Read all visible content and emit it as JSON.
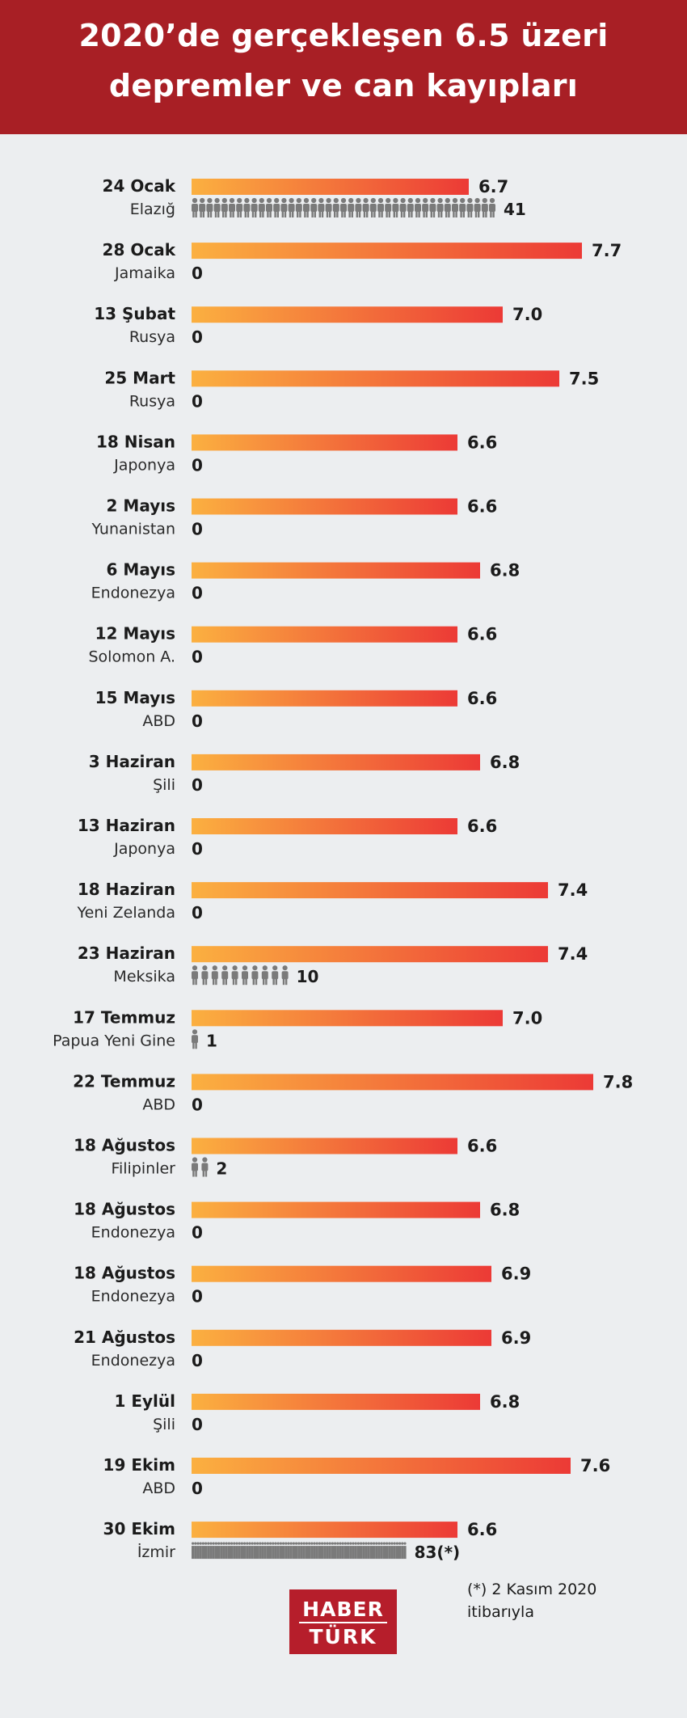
{
  "header": {
    "title_line1": "2020’de gerçekleşen 6.5 üzeri",
    "title_line2": "depremler ve can kayıpları"
  },
  "chart_data": {
    "type": "bar",
    "orientation": "horizontal",
    "value_label": "magnitude",
    "secondary_label": "deaths (person icons)",
    "colors": {
      "bar_start": "#fbb040",
      "bar_end": "#ec3a36",
      "person": "#7a7a7a",
      "header": "#a81f25"
    },
    "rows": [
      {
        "date": "24 Ocak",
        "place": "Elazığ",
        "magnitude": 6.7,
        "magnitude_label": "6.7",
        "deaths": 41,
        "deaths_label": "41"
      },
      {
        "date": "28 Ocak",
        "place": "Jamaika",
        "magnitude": 7.7,
        "magnitude_label": "7.7",
        "deaths": 0,
        "deaths_label": "0"
      },
      {
        "date": "13 Şubat",
        "place": "Rusya",
        "magnitude": 7.0,
        "magnitude_label": "7.0",
        "deaths": 0,
        "deaths_label": "0"
      },
      {
        "date": "25 Mart",
        "place": "Rusya",
        "magnitude": 7.5,
        "magnitude_label": "7.5",
        "deaths": 0,
        "deaths_label": "0"
      },
      {
        "date": "18 Nisan",
        "place": "Japonya",
        "magnitude": 6.6,
        "magnitude_label": "6.6",
        "deaths": 0,
        "deaths_label": "0"
      },
      {
        "date": "2 Mayıs",
        "place": "Yunanistan",
        "magnitude": 6.6,
        "magnitude_label": "6.6",
        "deaths": 0,
        "deaths_label": "0"
      },
      {
        "date": "6 Mayıs",
        "place": "Endonezya",
        "magnitude": 6.8,
        "magnitude_label": "6.8",
        "deaths": 0,
        "deaths_label": "0"
      },
      {
        "date": "12 Mayıs",
        "place": "Solomon A.",
        "magnitude": 6.6,
        "magnitude_label": "6.6",
        "deaths": 0,
        "deaths_label": "0"
      },
      {
        "date": "15 Mayıs",
        "place": "ABD",
        "magnitude": 6.6,
        "magnitude_label": "6.6",
        "deaths": 0,
        "deaths_label": "0"
      },
      {
        "date": "3 Haziran",
        "place": "Şili",
        "magnitude": 6.8,
        "magnitude_label": "6.8",
        "deaths": 0,
        "deaths_label": "0"
      },
      {
        "date": "13 Haziran",
        "place": "Japonya",
        "magnitude": 6.6,
        "magnitude_label": "6.6",
        "deaths": 0,
        "deaths_label": "0"
      },
      {
        "date": "18 Haziran",
        "place": "Yeni Zelanda",
        "magnitude": 7.4,
        "magnitude_label": "7.4",
        "deaths": 0,
        "deaths_label": "0"
      },
      {
        "date": "23 Haziran",
        "place": "Meksika",
        "magnitude": 7.4,
        "magnitude_label": "7.4",
        "deaths": 10,
        "deaths_label": "10"
      },
      {
        "date": "17 Temmuz",
        "place": "Papua Yeni Gine",
        "magnitude": 7.0,
        "magnitude_label": "7.0",
        "deaths": 1,
        "deaths_label": "1"
      },
      {
        "date": "22 Temmuz",
        "place": "ABD",
        "magnitude": 7.8,
        "magnitude_label": "7.8",
        "deaths": 0,
        "deaths_label": "0"
      },
      {
        "date": "18 Ağustos",
        "place": "Filipinler",
        "magnitude": 6.6,
        "magnitude_label": "6.6",
        "deaths": 2,
        "deaths_label": "2"
      },
      {
        "date": "18 Ağustos",
        "place": "Endonezya",
        "magnitude": 6.8,
        "magnitude_label": "6.8",
        "deaths": 0,
        "deaths_label": "0"
      },
      {
        "date": "18 Ağustos",
        "place": "Endonezya",
        "magnitude": 6.9,
        "magnitude_label": "6.9",
        "deaths": 0,
        "deaths_label": "0"
      },
      {
        "date": "21 Ağustos",
        "place": "Endonezya",
        "magnitude": 6.9,
        "magnitude_label": "6.9",
        "deaths": 0,
        "deaths_label": "0"
      },
      {
        "date": "1 Eylül",
        "place": "Şili",
        "magnitude": 6.8,
        "magnitude_label": "6.8",
        "deaths": 0,
        "deaths_label": "0"
      },
      {
        "date": "19 Ekim",
        "place": "ABD",
        "magnitude": 7.6,
        "magnitude_label": "7.6",
        "deaths": 0,
        "deaths_label": "0"
      },
      {
        "date": "30 Ekim",
        "place": "İzmir",
        "magnitude": 6.6,
        "magnitude_label": "6.6",
        "deaths": 83,
        "deaths_label": "83(*)"
      }
    ]
  },
  "footnote": {
    "line1": "(*) 2 Kasım 2020",
    "line2": "itibarıyla"
  },
  "logo": {
    "line1": "HABER",
    "line2": "TÜRK"
  }
}
